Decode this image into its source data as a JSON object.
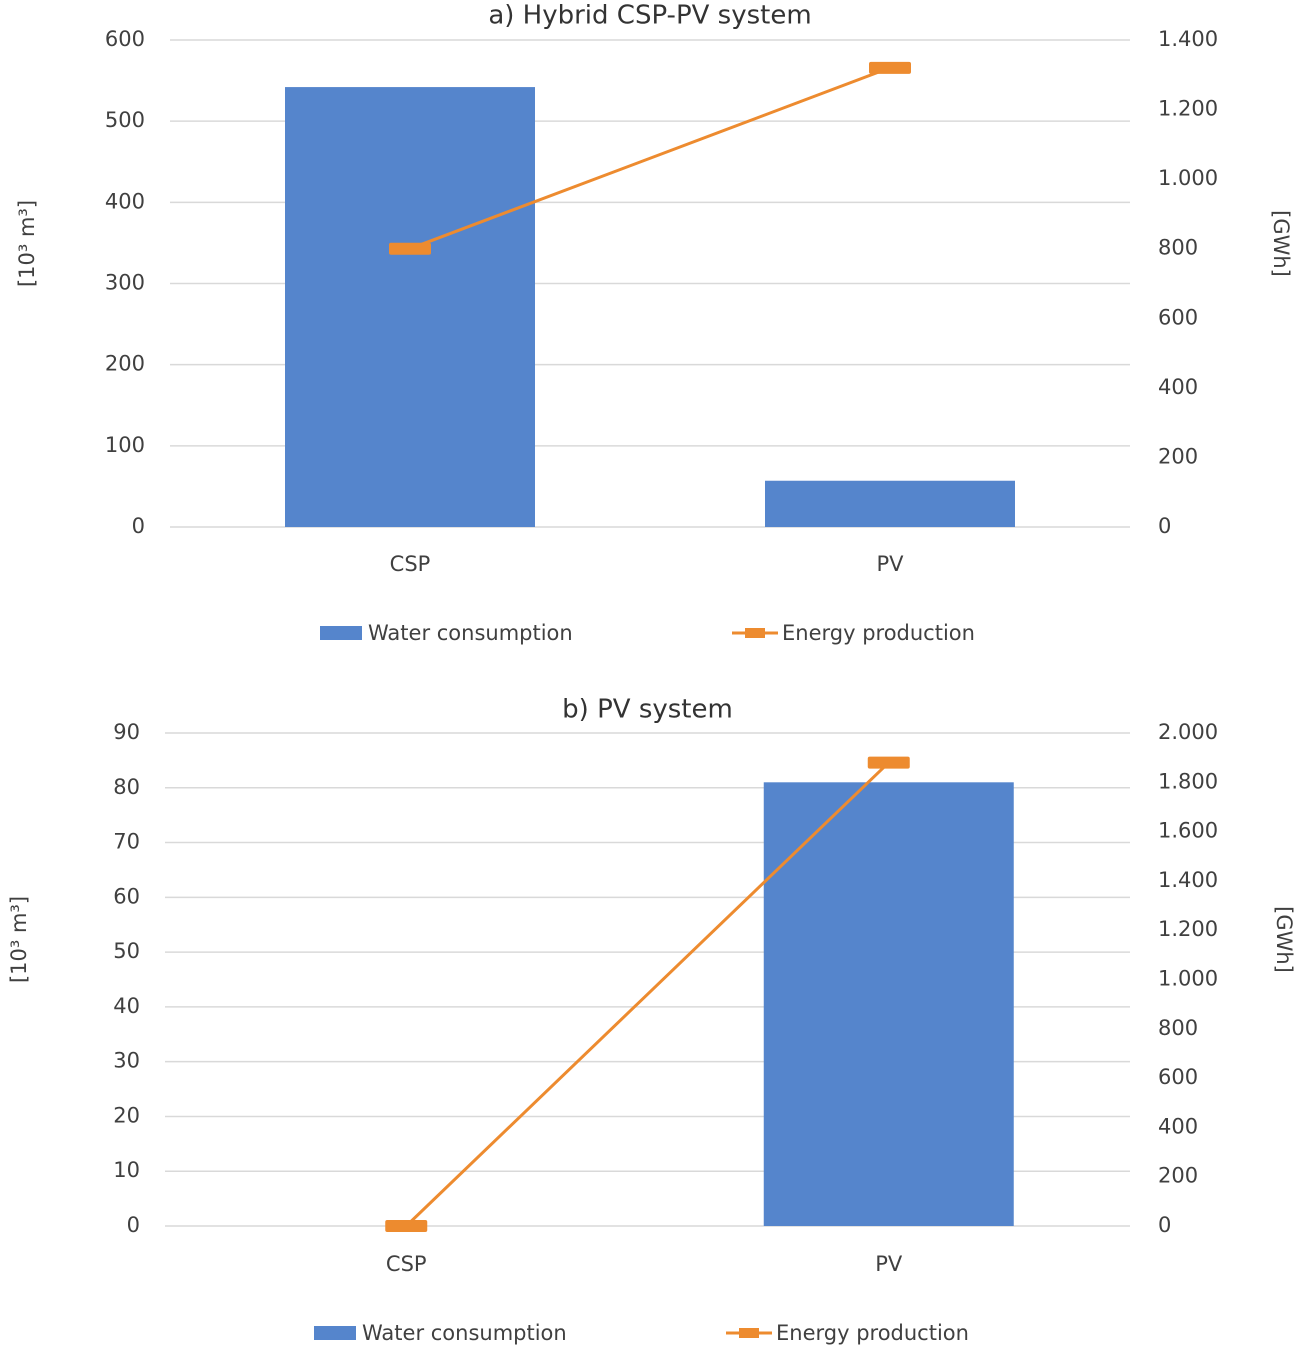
{
  "chart_data": [
    {
      "type": "bar_line",
      "title": "a) Hybrid CSP-PV system",
      "categories": [
        "CSP",
        "PV"
      ],
      "y_label": "[10³ m³]",
      "y2_label": "[GWh]",
      "series": [
        {
          "name": "Water consumption",
          "type": "bar",
          "color": "#5585cc",
          "axis": "y",
          "values": [
            542,
            57
          ]
        },
        {
          "name": "Energy production",
          "type": "line",
          "color": "#ed8b2f",
          "axis": "y2",
          "values": [
            800,
            1320
          ]
        }
      ],
      "ylim": [
        0,
        600
      ],
      "yticks": [
        0,
        100,
        200,
        300,
        400,
        500,
        600
      ],
      "y2lim": [
        0,
        1400
      ],
      "y2ticks": [
        0,
        200,
        400,
        600,
        800,
        {
          "value": 1000,
          "label": "1.000"
        },
        {
          "value": 1200,
          "label": "1.200"
        },
        {
          "value": 1400,
          "label": "1.400"
        }
      ],
      "grid": true,
      "legend": "bottom"
    },
    {
      "type": "bar_line",
      "title": "b) PV system",
      "categories": [
        "CSP",
        "PV"
      ],
      "y_label": "[10³ m³]",
      "y2_label": "[GWh]",
      "series": [
        {
          "name": "Water consumption",
          "type": "bar",
          "color": "#5585cc",
          "axis": "y",
          "values": [
            0,
            81
          ]
        },
        {
          "name": "Energy production",
          "type": "line",
          "color": "#ed8b2f",
          "axis": "y2",
          "values": [
            0,
            1880
          ]
        }
      ],
      "ylim": [
        0,
        90
      ],
      "yticks": [
        0,
        10,
        20,
        30,
        40,
        50,
        60,
        70,
        80,
        90
      ],
      "y2lim": [
        0,
        2000
      ],
      "y2ticks": [
        0,
        200,
        400,
        600,
        800,
        {
          "value": 1000,
          "label": "1.000"
        },
        {
          "value": 1200,
          "label": "1.200"
        },
        {
          "value": 1400,
          "label": "1.400"
        },
        {
          "value": 1600,
          "label": "1.600"
        },
        {
          "value": 1800,
          "label": "1.800"
        },
        {
          "value": 2000,
          "label": "2.000"
        }
      ],
      "grid": true,
      "legend": "bottom"
    }
  ]
}
